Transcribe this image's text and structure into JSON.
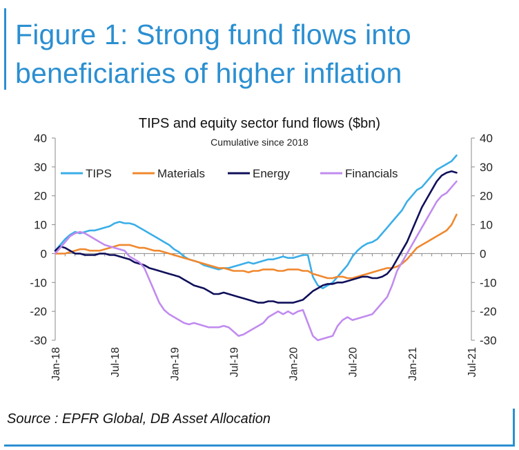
{
  "figure": {
    "title_line1": "Figure 1: Strong fund flows into",
    "title_line2": "beneficiaries of higher inflation",
    "source": "Source : EPFR Global, DB Asset Allocation"
  },
  "chart_data": {
    "type": "line",
    "title": "TIPS and equity sector fund flows ($bn)",
    "subtitle": "Cumulative since 2018",
    "xlabel": "",
    "ylabel": "",
    "ylim": [
      -30,
      40
    ],
    "yticks": [
      -30,
      -20,
      -10,
      0,
      10,
      20,
      30,
      40
    ],
    "ytick_labels": [
      "-30",
      "-20",
      "-10",
      "0",
      "10",
      "20",
      "30",
      "40"
    ],
    "xlim": [
      0,
      42
    ],
    "xticks": [
      0,
      6,
      12,
      18,
      24,
      30,
      36,
      42
    ],
    "xtick_labels": [
      "Jan-18",
      "Jul-18",
      "Jan-19",
      "Jul-19",
      "Jan-20",
      "Jul-20",
      "Jan-21",
      "Jul-21"
    ],
    "grid": false,
    "legend_position": "top",
    "series": [
      {
        "name": "TIPS",
        "color": "#3aaee8",
        "x": [
          0,
          0.5,
          1,
          1.5,
          2,
          2.5,
          3,
          3.5,
          4,
          4.5,
          5,
          5.5,
          6,
          6.5,
          7,
          7.5,
          8,
          8.5,
          9,
          9.5,
          10,
          10.5,
          11,
          11.5,
          12,
          12.5,
          13,
          13.5,
          14,
          14.5,
          15,
          15.5,
          16,
          16.5,
          17,
          17.5,
          18,
          18.5,
          19,
          19.5,
          20,
          20.5,
          21,
          21.5,
          22,
          22.5,
          23,
          23.5,
          24,
          24.5,
          25,
          25.5,
          26,
          26.5,
          27,
          27.5,
          28,
          28.5,
          29,
          29.5,
          30,
          30.5,
          31,
          31.5,
          32,
          32.5,
          33,
          33.5,
          34,
          34.5,
          35,
          35.5,
          36,
          36.5,
          37,
          37.5,
          38,
          38.5,
          39,
          39.5,
          40,
          40.5
        ],
        "values": [
          1,
          3,
          5,
          6.5,
          7.5,
          7,
          7.5,
          8,
          8,
          8.5,
          9,
          9.5,
          10.5,
          11,
          10.5,
          10.5,
          10,
          9,
          8,
          7,
          6,
          5,
          4,
          3,
          1.5,
          0.5,
          -1,
          -2,
          -2.5,
          -3,
          -4,
          -4.5,
          -5,
          -5.5,
          -5,
          -5,
          -4.5,
          -4,
          -3.5,
          -3,
          -3.5,
          -3,
          -2.5,
          -2,
          -2,
          -1.5,
          -1,
          -1.5,
          -1.5,
          -1,
          -0.5,
          -0.5,
          -8,
          -11,
          -12,
          -11,
          -10,
          -8,
          -6,
          -4,
          -1,
          1,
          2.5,
          3.5,
          4,
          5,
          7,
          9,
          11,
          13,
          15,
          18,
          20,
          22,
          23,
          25,
          27,
          29,
          30,
          31,
          32,
          34
        ]
      },
      {
        "name": "Materials",
        "color": "#f0882e",
        "x": [
          0,
          0.5,
          1,
          1.5,
          2,
          2.5,
          3,
          3.5,
          4,
          4.5,
          5,
          5.5,
          6,
          6.5,
          7,
          7.5,
          8,
          8.5,
          9,
          9.5,
          10,
          10.5,
          11,
          11.5,
          12,
          12.5,
          13,
          13.5,
          14,
          14.5,
          15,
          15.5,
          16,
          16.5,
          17,
          17.5,
          18,
          18.5,
          19,
          19.5,
          20,
          20.5,
          21,
          21.5,
          22,
          22.5,
          23,
          23.5,
          24,
          24.5,
          25,
          25.5,
          26,
          26.5,
          27,
          27.5,
          28,
          28.5,
          29,
          29.5,
          30,
          30.5,
          31,
          31.5,
          32,
          32.5,
          33,
          33.5,
          34,
          34.5,
          35,
          35.5,
          36,
          36.5,
          37,
          37.5,
          38,
          38.5,
          39,
          39.5,
          40,
          40.5
        ],
        "values": [
          0,
          0,
          0,
          0.5,
          1,
          1.5,
          1.5,
          1,
          1,
          1,
          1.5,
          2,
          2.5,
          3,
          3,
          3,
          2.5,
          2,
          2,
          1.5,
          1,
          1,
          0.5,
          0,
          -0.5,
          -1,
          -1.5,
          -2,
          -2.5,
          -3,
          -3.5,
          -4,
          -4.5,
          -5,
          -5,
          -5.5,
          -6,
          -6,
          -6,
          -6.5,
          -6,
          -6,
          -5.5,
          -5.5,
          -5.5,
          -6,
          -6,
          -5.5,
          -5.5,
          -5.5,
          -6,
          -6,
          -7,
          -7.5,
          -8,
          -8.5,
          -8.5,
          -8,
          -8,
          -8.5,
          -8.5,
          -8,
          -7.5,
          -7,
          -6.5,
          -6,
          -5.5,
          -5,
          -5,
          -4.5,
          -3.5,
          -2,
          0,
          2,
          3,
          4,
          5,
          6,
          7,
          8,
          10,
          13.5
        ]
      },
      {
        "name": "Energy",
        "color": "#0f0f5a",
        "x": [
          0,
          0.5,
          1,
          1.5,
          2,
          2.5,
          3,
          3.5,
          4,
          4.5,
          5,
          5.5,
          6,
          6.5,
          7,
          7.5,
          8,
          8.5,
          9,
          9.5,
          10,
          10.5,
          11,
          11.5,
          12,
          12.5,
          13,
          13.5,
          14,
          14.5,
          15,
          15.5,
          16,
          16.5,
          17,
          17.5,
          18,
          18.5,
          19,
          19.5,
          20,
          20.5,
          21,
          21.5,
          22,
          22.5,
          23,
          23.5,
          24,
          24.5,
          25,
          25.5,
          26,
          26.5,
          27,
          27.5,
          28,
          28.5,
          29,
          29.5,
          30,
          30.5,
          31,
          31.5,
          32,
          32.5,
          33,
          33.5,
          34,
          34.5,
          35,
          35.5,
          36,
          36.5,
          37,
          37.5,
          38,
          38.5,
          39,
          39.5,
          40,
          40.5
        ],
        "values": [
          1,
          2.5,
          2,
          1,
          0,
          0,
          -0.5,
          -0.5,
          -0.5,
          0,
          0,
          -0.5,
          -0.5,
          -1,
          -1.5,
          -2,
          -3,
          -3.5,
          -4,
          -5,
          -5.5,
          -6,
          -6.5,
          -7,
          -7.5,
          -8,
          -9,
          -10,
          -11,
          -11.5,
          -12,
          -13,
          -14,
          -14,
          -13.5,
          -14,
          -14.5,
          -15,
          -15.5,
          -16,
          -16.5,
          -17,
          -17,
          -16.5,
          -16.5,
          -17,
          -17,
          -17,
          -17,
          -16.5,
          -16,
          -14.5,
          -13,
          -12,
          -11,
          -10.5,
          -10.5,
          -10,
          -10,
          -9.5,
          -9,
          -8.5,
          -8,
          -8,
          -8.5,
          -8.5,
          -8,
          -7,
          -5,
          -2,
          1,
          4,
          8,
          12,
          16,
          19,
          22,
          25,
          27,
          28,
          28.5,
          28
        ]
      },
      {
        "name": "Financials",
        "color": "#c18bef",
        "x": [
          0,
          0.5,
          1,
          1.5,
          2,
          2.5,
          3,
          3.5,
          4,
          4.5,
          5,
          5.5,
          6,
          6.5,
          7,
          7.5,
          8,
          8.5,
          9,
          9.5,
          10,
          10.5,
          11,
          11.5,
          12,
          12.5,
          13,
          13.5,
          14,
          14.5,
          15,
          15.5,
          16,
          16.5,
          17,
          17.5,
          18,
          18.5,
          19,
          19.5,
          20,
          20.5,
          21,
          21.5,
          22,
          22.5,
          23,
          23.5,
          24,
          24.5,
          25,
          25.5,
          26,
          26.5,
          27,
          27.5,
          28,
          28.5,
          29,
          29.5,
          30,
          30.5,
          31,
          31.5,
          32,
          32.5,
          33,
          33.5,
          34,
          34.5,
          35,
          35.5,
          36,
          36.5,
          37,
          37.5,
          38,
          38.5,
          39,
          39.5,
          40,
          40.5
        ],
        "values": [
          0,
          2,
          4,
          6,
          7,
          7.5,
          7,
          6,
          5,
          4,
          3,
          2.5,
          2,
          1.5,
          1,
          -1,
          -2,
          -3,
          -5,
          -9,
          -13,
          -17,
          -19.5,
          -21,
          -22,
          -23,
          -24,
          -24.5,
          -24,
          -24.5,
          -25,
          -25.5,
          -25.5,
          -25.5,
          -25,
          -25.5,
          -27,
          -28.5,
          -28,
          -27,
          -26,
          -25,
          -24,
          -22,
          -21,
          -20,
          -21,
          -20,
          -21,
          -20,
          -19.5,
          -24,
          -28.5,
          -30,
          -29.5,
          -29,
          -28.5,
          -25,
          -23,
          -22,
          -23,
          -22.5,
          -22,
          -21.5,
          -21,
          -19,
          -17,
          -15,
          -11,
          -6,
          -3,
          0,
          3,
          6,
          9,
          12,
          15,
          18,
          20,
          21,
          23,
          25
        ]
      }
    ]
  }
}
